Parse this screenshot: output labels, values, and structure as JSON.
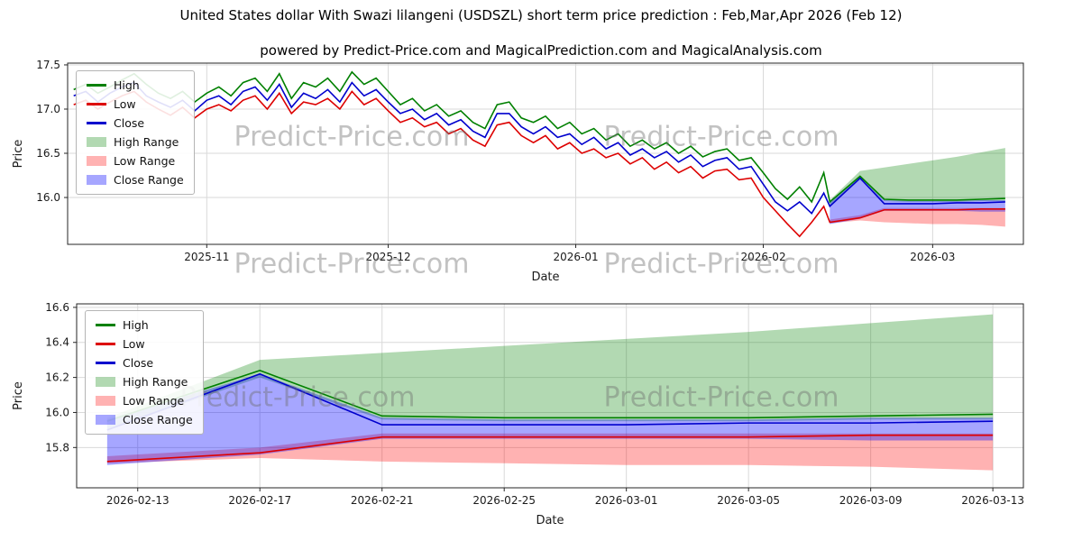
{
  "header": {
    "title": "United States dollar With Swazi lilangeni (USDSZL) short term price prediction : Feb,Mar,Apr 2026 (Feb 12)",
    "subtitle": "powered by Predict-Price.com and MagicalPrediction.com and MagicalAnalysis.com"
  },
  "watermark": {
    "text": "Predict-Price.com"
  },
  "colors": {
    "high": "#008000",
    "low": "#dd0000",
    "close": "#0000cd",
    "high_range": "rgba(0,128,0,0.30)",
    "low_range": "rgba(255,0,0,0.30)",
    "close_range": "rgba(0,0,255,0.35)"
  },
  "legend": {
    "items": [
      {
        "label": "High",
        "swatch": "line",
        "color": "high"
      },
      {
        "label": "Low",
        "swatch": "line",
        "color": "low"
      },
      {
        "label": "Close",
        "swatch": "line",
        "color": "close"
      },
      {
        "label": "High Range",
        "swatch": "patch",
        "color": "high_range"
      },
      {
        "label": "Low Range",
        "swatch": "patch",
        "color": "low_range"
      },
      {
        "label": "Close Range",
        "swatch": "patch",
        "color": "close_range"
      }
    ]
  },
  "chart_data": [
    {
      "type": "line",
      "name": "history-and-forecast",
      "xlabel": "Date",
      "ylabel": "Price",
      "xlim": [
        "2025-10-09",
        "2026-03-16"
      ],
      "ylim": [
        15.47,
        17.52
      ],
      "yticks": [
        16.0,
        16.5,
        17.0,
        17.5
      ],
      "ytick_labels": [
        "16.0",
        "16.5",
        "17.0",
        "17.5"
      ],
      "xticks": [
        "2025-11-01",
        "2025-12-01",
        "2026-01-01",
        "2026-02-01",
        "2026-03-01"
      ],
      "xtick_labels": [
        "2025-11",
        "2025-12",
        "2026-01",
        "2026-02",
        "2026-03"
      ],
      "grid": true,
      "legend_position": "upper left",
      "x": [
        "2025-10-10",
        "2025-10-12",
        "2025-10-14",
        "2025-10-16",
        "2025-10-18",
        "2025-10-20",
        "2025-10-22",
        "2025-10-24",
        "2025-10-26",
        "2025-10-28",
        "2025-10-30",
        "2025-11-01",
        "2025-11-03",
        "2025-11-05",
        "2025-11-07",
        "2025-11-09",
        "2025-11-11",
        "2025-11-13",
        "2025-11-15",
        "2025-11-17",
        "2025-11-19",
        "2025-11-21",
        "2025-11-23",
        "2025-11-25",
        "2025-11-27",
        "2025-11-29",
        "2025-12-01",
        "2025-12-03",
        "2025-12-05",
        "2025-12-07",
        "2025-12-09",
        "2025-12-11",
        "2025-12-13",
        "2025-12-15",
        "2025-12-17",
        "2025-12-19",
        "2025-12-21",
        "2025-12-23",
        "2025-12-25",
        "2025-12-27",
        "2025-12-29",
        "2025-12-31",
        "2026-01-02",
        "2026-01-04",
        "2026-01-06",
        "2026-01-08",
        "2026-01-10",
        "2026-01-12",
        "2026-01-14",
        "2026-01-16",
        "2026-01-18",
        "2026-01-20",
        "2026-01-22",
        "2026-01-24",
        "2026-01-26",
        "2026-01-28",
        "2026-01-30",
        "2026-02-01",
        "2026-02-03",
        "2026-02-05",
        "2026-02-07",
        "2026-02-09",
        "2026-02-11",
        "2026-02-12",
        "2026-02-17",
        "2026-02-21",
        "2026-02-25",
        "2026-03-01",
        "2026-03-05",
        "2026-03-09",
        "2026-03-13"
      ],
      "series": [
        {
          "name": "High",
          "color": "high",
          "y": [
            17.22,
            17.28,
            17.18,
            17.25,
            17.33,
            17.4,
            17.28,
            17.18,
            17.12,
            17.2,
            17.08,
            17.18,
            17.25,
            17.15,
            17.3,
            17.35,
            17.2,
            17.4,
            17.12,
            17.3,
            17.25,
            17.35,
            17.2,
            17.42,
            17.28,
            17.35,
            17.2,
            17.05,
            17.12,
            16.98,
            17.05,
            16.92,
            16.98,
            16.85,
            16.78,
            17.05,
            17.08,
            16.9,
            16.85,
            16.92,
            16.78,
            16.85,
            16.72,
            16.78,
            16.65,
            16.72,
            16.58,
            16.65,
            16.55,
            16.62,
            16.5,
            16.58,
            16.46,
            16.52,
            16.55,
            16.42,
            16.45,
            16.28,
            16.1,
            15.98,
            16.12,
            15.95,
            16.28,
            15.95,
            16.24,
            15.98,
            15.97,
            15.97,
            15.97,
            15.98,
            15.99
          ]
        },
        {
          "name": "Low",
          "color": "low",
          "y": [
            17.05,
            17.1,
            17.0,
            17.08,
            17.15,
            17.2,
            17.08,
            17.0,
            16.93,
            17.02,
            16.9,
            17.0,
            17.05,
            16.98,
            17.1,
            17.15,
            17.0,
            17.18,
            16.95,
            17.08,
            17.05,
            17.12,
            17.0,
            17.2,
            17.05,
            17.12,
            16.98,
            16.85,
            16.9,
            16.8,
            16.85,
            16.72,
            16.78,
            16.65,
            16.58,
            16.82,
            16.85,
            16.7,
            16.62,
            16.7,
            16.55,
            16.62,
            16.5,
            16.55,
            16.45,
            16.5,
            16.38,
            16.45,
            16.32,
            16.4,
            16.28,
            16.35,
            16.22,
            16.3,
            16.32,
            16.2,
            16.22,
            16.0,
            15.85,
            15.7,
            15.56,
            15.72,
            15.9,
            15.72,
            15.77,
            15.86,
            15.86,
            15.86,
            15.86,
            15.87,
            15.87
          ]
        },
        {
          "name": "Close",
          "color": "close",
          "y": [
            17.15,
            17.2,
            17.08,
            17.18,
            17.25,
            17.3,
            17.15,
            17.08,
            17.02,
            17.1,
            16.98,
            17.1,
            17.15,
            17.05,
            17.2,
            17.25,
            17.1,
            17.28,
            17.02,
            17.18,
            17.12,
            17.22,
            17.08,
            17.3,
            17.15,
            17.22,
            17.08,
            16.95,
            17.0,
            16.88,
            16.95,
            16.82,
            16.88,
            16.75,
            16.68,
            16.95,
            16.95,
            16.8,
            16.72,
            16.8,
            16.68,
            16.72,
            16.6,
            16.68,
            16.55,
            16.62,
            16.48,
            16.55,
            16.45,
            16.52,
            16.4,
            16.48,
            16.35,
            16.42,
            16.45,
            16.32,
            16.35,
            16.15,
            15.95,
            15.85,
            15.95,
            15.82,
            16.05,
            15.9,
            16.22,
            15.93,
            15.93,
            15.93,
            15.94,
            15.94,
            15.95
          ]
        }
      ],
      "bands": [
        {
          "name": "High Range",
          "color": "high_range",
          "x": [
            "2026-02-12",
            "2026-02-17",
            "2026-02-21",
            "2026-02-25",
            "2026-03-01",
            "2026-03-05",
            "2026-03-09",
            "2026-03-13"
          ],
          "upper": [
            15.97,
            16.3,
            16.34,
            16.38,
            16.42,
            16.46,
            16.51,
            16.56
          ],
          "lower": [
            15.9,
            16.2,
            15.96,
            15.95,
            15.95,
            15.95,
            15.96,
            15.96
          ]
        },
        {
          "name": "Low Range",
          "color": "low_range",
          "x": [
            "2026-02-12",
            "2026-02-17",
            "2026-02-21",
            "2026-02-25",
            "2026-03-01",
            "2026-03-05",
            "2026-03-09",
            "2026-03-13"
          ],
          "upper": [
            15.75,
            15.8,
            15.88,
            15.88,
            15.88,
            15.88,
            15.88,
            15.88
          ],
          "lower": [
            15.71,
            15.74,
            15.72,
            15.71,
            15.7,
            15.7,
            15.69,
            15.67
          ]
        },
        {
          "name": "Close Range",
          "color": "close_range",
          "x": [
            "2026-02-12",
            "2026-02-17",
            "2026-02-21",
            "2026-02-25",
            "2026-03-01",
            "2026-03-05",
            "2026-03-09",
            "2026-03-13"
          ],
          "upper": [
            15.96,
            16.22,
            15.97,
            15.96,
            15.96,
            15.96,
            15.97,
            15.97
          ],
          "lower": [
            15.7,
            15.76,
            15.85,
            15.85,
            15.85,
            15.85,
            15.84,
            15.84
          ]
        }
      ]
    },
    {
      "type": "line",
      "name": "forecast-detail",
      "xlabel": "Date",
      "ylabel": "Price",
      "xlim": [
        "2026-02-11",
        "2026-03-14"
      ],
      "ylim": [
        15.57,
        16.62
      ],
      "yticks": [
        15.8,
        16.0,
        16.2,
        16.4,
        16.6
      ],
      "ytick_labels": [
        "15.8",
        "16.0",
        "16.2",
        "16.4",
        "16.6"
      ],
      "xticks": [
        "2026-02-13",
        "2026-02-17",
        "2026-02-21",
        "2026-02-25",
        "2026-03-01",
        "2026-03-05",
        "2026-03-09",
        "2026-03-13"
      ],
      "xtick_labels": [
        "2026-02-13",
        "2026-02-17",
        "2026-02-21",
        "2026-02-25",
        "2026-03-01",
        "2026-03-05",
        "2026-03-09",
        "2026-03-13"
      ],
      "grid": true,
      "legend_position": "upper left",
      "x": [
        "2026-02-12",
        "2026-02-17",
        "2026-02-21",
        "2026-02-25",
        "2026-03-01",
        "2026-03-05",
        "2026-03-09",
        "2026-03-13"
      ],
      "series": [
        {
          "name": "High",
          "color": "high",
          "y": [
            15.95,
            16.24,
            15.98,
            15.97,
            15.97,
            15.97,
            15.98,
            15.99
          ]
        },
        {
          "name": "Low",
          "color": "low",
          "y": [
            15.72,
            15.77,
            15.86,
            15.86,
            15.86,
            15.86,
            15.87,
            15.87
          ]
        },
        {
          "name": "Close",
          "color": "close",
          "y": [
            15.9,
            16.22,
            15.93,
            15.93,
            15.93,
            15.94,
            15.94,
            15.95
          ]
        }
      ],
      "bands": [
        {
          "name": "High Range",
          "color": "high_range",
          "x": [
            "2026-02-12",
            "2026-02-17",
            "2026-02-21",
            "2026-02-25",
            "2026-03-01",
            "2026-03-05",
            "2026-03-09",
            "2026-03-13"
          ],
          "upper": [
            15.97,
            16.3,
            16.34,
            16.38,
            16.42,
            16.46,
            16.51,
            16.56
          ],
          "lower": [
            15.9,
            16.2,
            15.96,
            15.95,
            15.95,
            15.95,
            15.96,
            15.96
          ]
        },
        {
          "name": "Low Range",
          "color": "low_range",
          "x": [
            "2026-02-12",
            "2026-02-17",
            "2026-02-21",
            "2026-02-25",
            "2026-03-01",
            "2026-03-05",
            "2026-03-09",
            "2026-03-13"
          ],
          "upper": [
            15.75,
            15.8,
            15.88,
            15.88,
            15.88,
            15.88,
            15.88,
            15.88
          ],
          "lower": [
            15.71,
            15.74,
            15.72,
            15.71,
            15.7,
            15.7,
            15.69,
            15.67
          ]
        },
        {
          "name": "Close Range",
          "color": "close_range",
          "x": [
            "2026-02-12",
            "2026-02-17",
            "2026-02-21",
            "2026-02-25",
            "2026-03-01",
            "2026-03-05",
            "2026-03-09",
            "2026-03-13"
          ],
          "upper": [
            15.96,
            16.22,
            15.97,
            15.96,
            15.96,
            15.96,
            15.97,
            15.97
          ],
          "lower": [
            15.7,
            15.76,
            15.85,
            15.85,
            15.85,
            15.85,
            15.84,
            15.84
          ]
        }
      ]
    }
  ]
}
